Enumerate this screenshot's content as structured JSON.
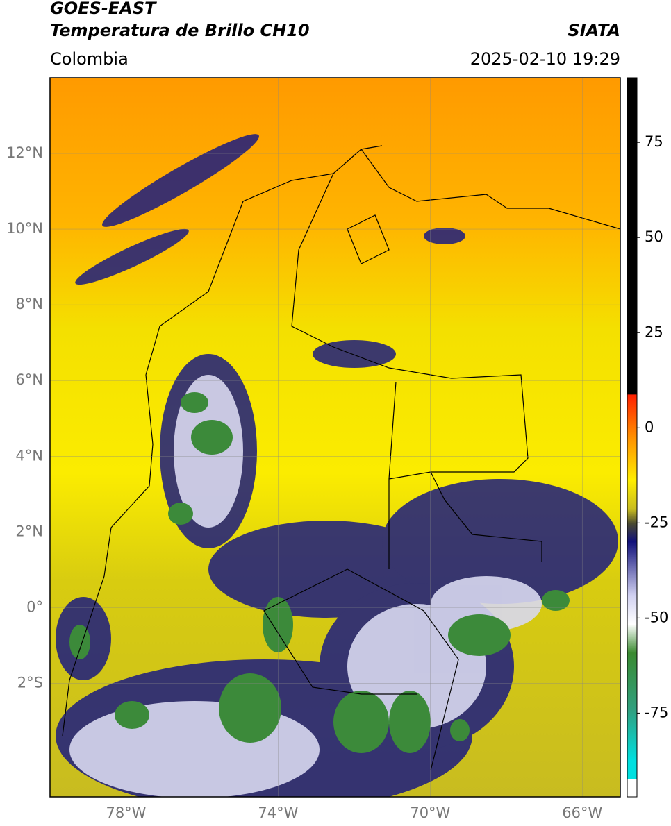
{
  "chart_data": {
    "type": "map",
    "title": "GOES-EAST",
    "subtitle": "Temperatura de Brillo CH10",
    "source": "SIATA",
    "region": "Colombia",
    "timestamp": "2025-02-10 19:29",
    "xlim": [
      -80,
      -65
    ],
    "ylim": [
      -5,
      14
    ],
    "xticks": [
      {
        "value": -78,
        "label": "78°W"
      },
      {
        "value": -74,
        "label": "74°W"
      },
      {
        "value": -70,
        "label": "70°W"
      },
      {
        "value": -66,
        "label": "66°W"
      }
    ],
    "yticks": [
      {
        "value": 12,
        "label": "12°N"
      },
      {
        "value": 10,
        "label": "10°N"
      },
      {
        "value": 8,
        "label": "8°N"
      },
      {
        "value": 6,
        "label": "6°N"
      },
      {
        "value": 4,
        "label": "4°N"
      },
      {
        "value": 2,
        "label": "2°N"
      },
      {
        "value": 0,
        "label": "0°"
      },
      {
        "value": -2,
        "label": "2°S"
      }
    ],
    "grid": true,
    "colorbar": {
      "lim": [
        -97,
        92
      ],
      "ticks": [
        75,
        50,
        25,
        0,
        -25,
        -50,
        -75
      ]
    }
  }
}
